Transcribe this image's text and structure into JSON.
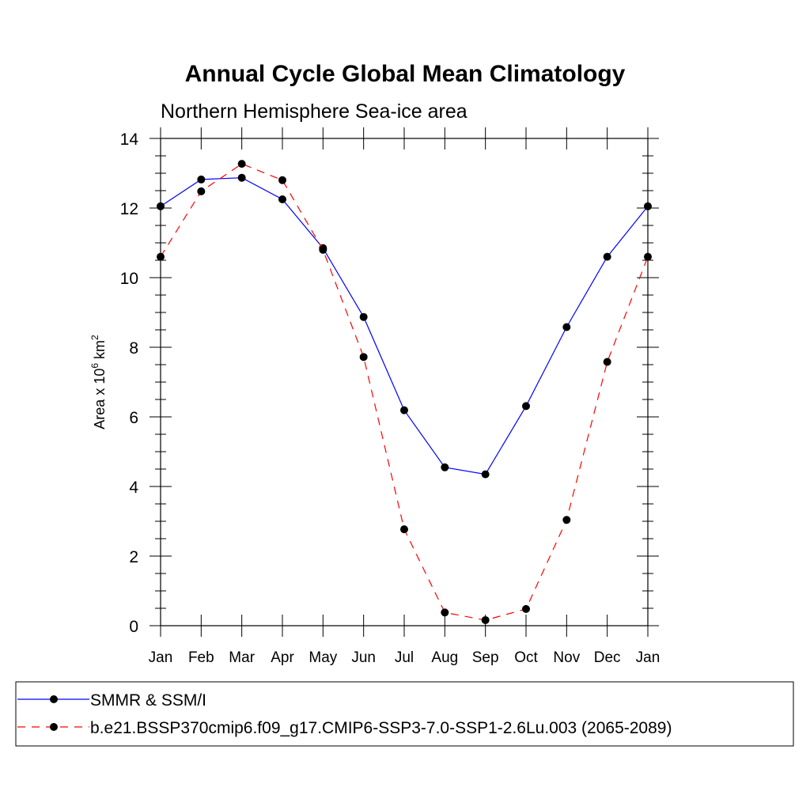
{
  "chart_data": {
    "type": "line",
    "title": "Annual Cycle Global Mean Climatology",
    "subtitle": "Northern Hemisphere Sea-ice area",
    "ylabel": {
      "prefix": "Area x 10",
      "exp1": "6",
      "mid": " km",
      "exp2": "2"
    },
    "xlabel": "",
    "categories": [
      "Jan",
      "Feb",
      "Mar",
      "Apr",
      "May",
      "Jun",
      "Jul",
      "Aug",
      "Sep",
      "Oct",
      "Nov",
      "Dec",
      "Jan"
    ],
    "ylim": [
      0,
      14
    ],
    "yticks": [
      0,
      2,
      4,
      6,
      8,
      10,
      12,
      14
    ],
    "legend_position": "bottom",
    "series": [
      {
        "name": "SMMR & SSM/I",
        "color": "#0000ff",
        "dash": "solid",
        "values": [
          12.05,
          12.82,
          12.87,
          12.25,
          10.85,
          8.87,
          6.19,
          4.55,
          4.35,
          6.31,
          8.58,
          10.6,
          12.05
        ]
      },
      {
        "name": "b.e21.BSSP370cmip6.f09_g17.CMIP6-SSP3-7.0-SSP1-2.6Lu.003 (2065-2089)",
        "color": "#ff0000",
        "dash": "dashed",
        "values": [
          10.6,
          12.48,
          13.27,
          12.8,
          10.8,
          7.72,
          2.77,
          0.38,
          0.16,
          0.48,
          3.04,
          7.58,
          10.6
        ]
      }
    ]
  }
}
